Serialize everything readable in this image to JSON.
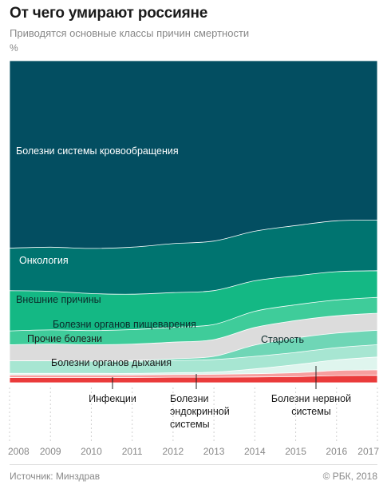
{
  "header": {
    "title": "От чего умирают россияне",
    "subtitle": "Приводятся основные классы причин смертности",
    "unit": "%"
  },
  "footer": {
    "source": "Источник: Минздрав",
    "copyright": "© РБК, 2018"
  },
  "colors": {
    "circulatory": "#034e61",
    "oncology": "#007470",
    "external": "#14b884",
    "digestive": "#3fcc9a",
    "other": "#dcdcdc",
    "old_age": "#6fd6b6",
    "respiratory": "#a7e6d2",
    "nervous": "#dff5ee",
    "endocrine": "#f79e9e",
    "infections": "#ea3b3b"
  },
  "chart_data": {
    "type": "area",
    "stacked": true,
    "normalized_to": 100,
    "x": [
      "2008",
      "2009",
      "2010",
      "2011",
      "2012",
      "2013",
      "2014",
      "2015",
      "2016",
      "2017"
    ],
    "ylim": [
      0,
      100
    ],
    "grid": false,
    "series": [
      {
        "key": "infections",
        "name": "Инфекции",
        "values": [
          1.6,
          1.6,
          1.6,
          1.6,
          1.7,
          1.7,
          1.8,
          1.9,
          2.2,
          2.3
        ]
      },
      {
        "key": "endocrine",
        "name": "Болезни эндокринной системы",
        "values": [
          0.8,
          0.8,
          0.8,
          0.8,
          0.8,
          0.9,
          1.0,
          1.2,
          1.6,
          1.7
        ]
      },
      {
        "key": "nervous",
        "name": "Болезни нервной системы",
        "values": [
          0.5,
          0.5,
          0.5,
          0.5,
          0.6,
          0.7,
          1.5,
          2.5,
          3.3,
          4.0
        ]
      },
      {
        "key": "respiratory",
        "name": "Болезни органов дыхания",
        "values": [
          3.9,
          3.9,
          3.8,
          3.8,
          3.8,
          3.9,
          3.9,
          3.8,
          3.8,
          3.8
        ]
      },
      {
        "key": "old_age",
        "name": "Старость",
        "values": [
          0.0,
          0.0,
          0.0,
          0.2,
          0.5,
          1.0,
          3.5,
          4.5,
          4.5,
          4.5
        ]
      },
      {
        "key": "other",
        "name": "Прочие болезни",
        "values": [
          5.0,
          5.2,
          5.1,
          5.1,
          5.2,
          5.2,
          5.5,
          5.4,
          5.4,
          5.3
        ]
      },
      {
        "key": "digestive",
        "name": "Болезни органов пищеварения",
        "values": [
          4.3,
          4.4,
          4.4,
          4.5,
          4.6,
          4.7,
          5.0,
          4.9,
          4.9,
          4.9
        ]
      },
      {
        "key": "external",
        "name": "Внешние причины",
        "values": [
          12.5,
          12.0,
          11.5,
          11.0,
          10.8,
          10.5,
          9.5,
          9.0,
          8.8,
          8.3
        ]
      },
      {
        "key": "oncology",
        "name": "Онкология",
        "values": [
          13.2,
          13.7,
          14.0,
          14.6,
          15.2,
          15.4,
          15.4,
          15.6,
          15.8,
          15.7
        ]
      },
      {
        "key": "circulatory",
        "name": "Болезни системы кровообращения",
        "values": [
          58.2,
          57.9,
          58.3,
          57.9,
          56.8,
          56.0,
          53.0,
          51.2,
          49.7,
          49.5
        ]
      }
    ],
    "labels": {
      "circulatory": "Болезни системы кровообращения",
      "oncology": "Онкология",
      "external": "Внешние причины",
      "digestive": "Болезни органов пищеварения",
      "other": "Прочие болезни",
      "old_age": "Старость",
      "respiratory": "Болезни органов дыхания",
      "infections": "Инфекции",
      "endocrine_lines": [
        "Болезни",
        "эндокринной",
        "системы"
      ],
      "nervous_lines": [
        "Болезни нервной",
        "системы"
      ]
    }
  }
}
